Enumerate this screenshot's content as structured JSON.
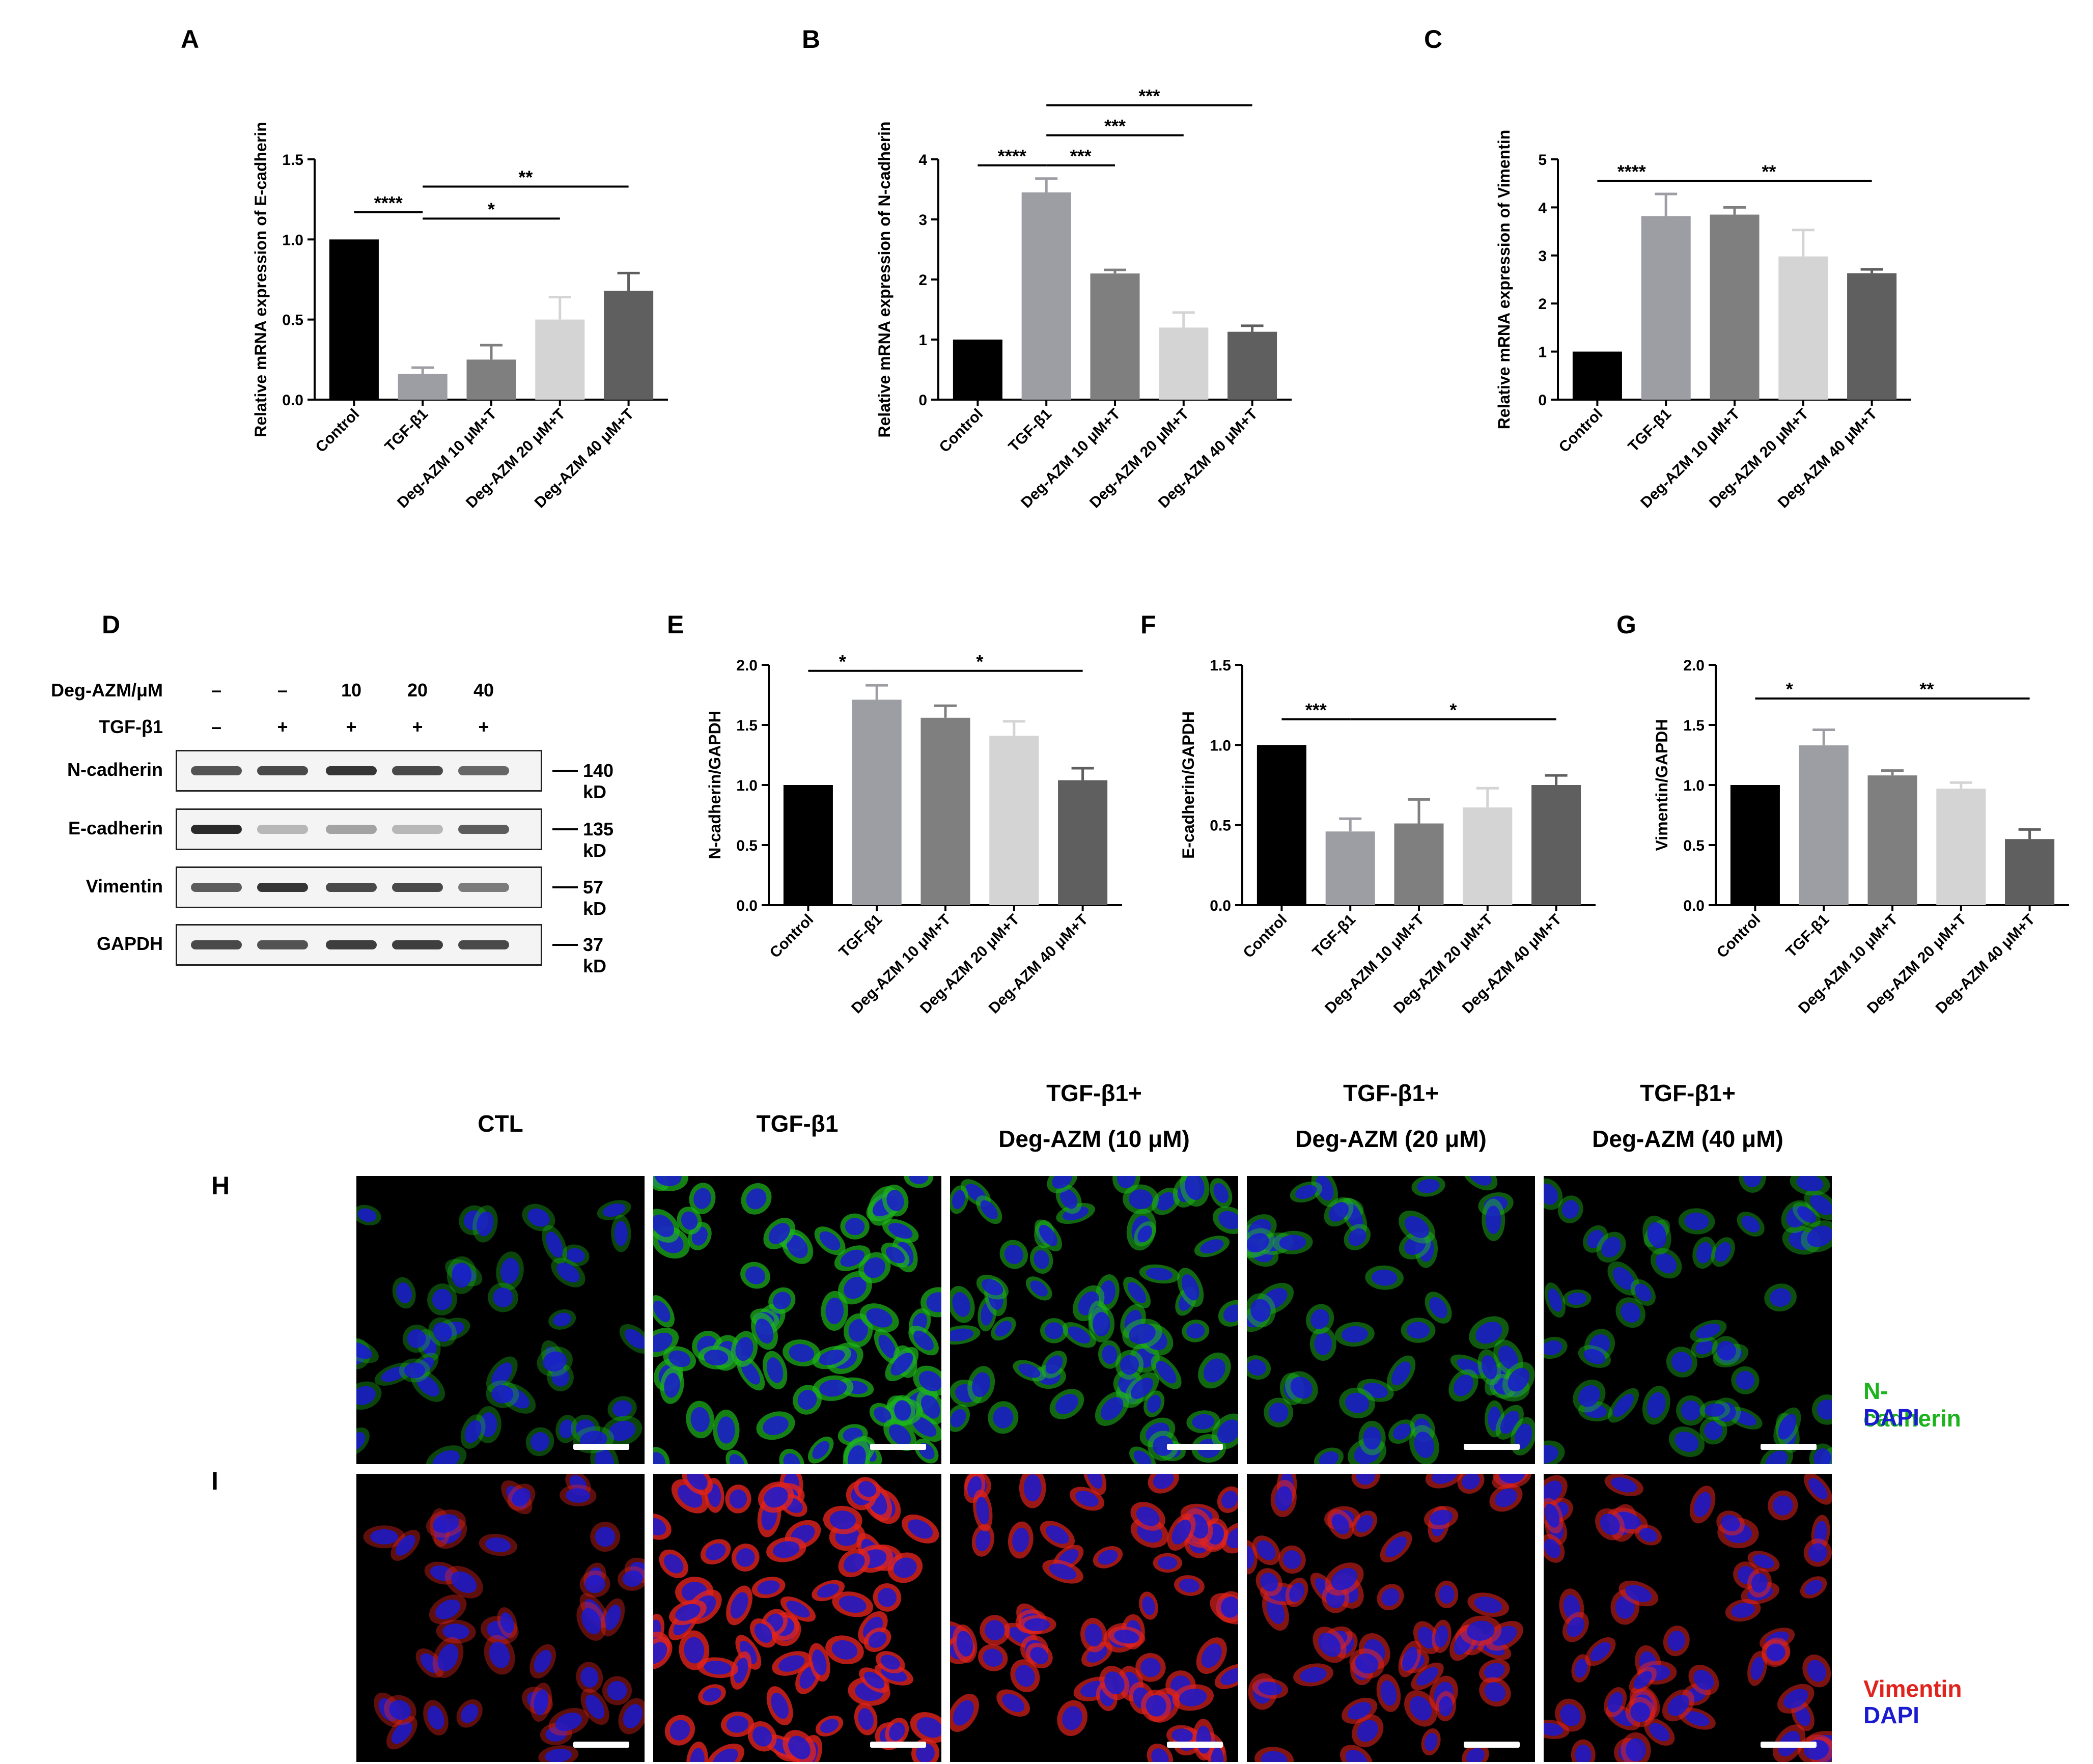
{
  "panel_letters": {
    "A": "A",
    "B": "B",
    "C": "C",
    "D": "D",
    "E": "E",
    "F": "F",
    "G": "G",
    "H": "H",
    "I": "I"
  },
  "chart_data": [
    {
      "id": "A",
      "type": "bar",
      "categories": [
        "Control",
        "TGF-β1",
        "Deg-AZM 10 μM+T",
        "Deg-AZM 20 μM+T",
        "Deg-AZM 40 μM+T"
      ],
      "values": [
        1.0,
        0.16,
        0.25,
        0.5,
        0.68
      ],
      "errors": [
        0,
        0.04,
        0.09,
        0.14,
        0.11
      ],
      "colors": [
        "#000000",
        "#9d9da4",
        "#7f7f7f",
        "#d4d4d4",
        "#5f5f5f"
      ],
      "ylabel": "Relative mRNA expression of E-cadherin",
      "ylim": [
        0,
        1.5
      ],
      "ticks": [
        "0.0",
        "0.5",
        "1.0",
        "1.5"
      ],
      "significance": [
        {
          "from": 0,
          "to": 1,
          "y": 1.17,
          "label": "****"
        },
        {
          "from": 1,
          "to": 3,
          "y": 1.13,
          "label": "*"
        },
        {
          "from": 1,
          "to": 4,
          "y": 1.33,
          "label": "**"
        }
      ]
    },
    {
      "id": "B",
      "type": "bar",
      "categories": [
        "Control",
        "TGF-β1",
        "Deg-AZM 10 μM+T",
        "Deg-AZM 20 μM+T",
        "Deg-AZM 40 μM+T"
      ],
      "values": [
        1.0,
        3.45,
        2.1,
        1.2,
        1.13
      ],
      "errors": [
        0,
        0.23,
        0.06,
        0.25,
        0.1
      ],
      "colors": [
        "#000000",
        "#9d9da4",
        "#7f7f7f",
        "#d4d4d4",
        "#5f5f5f"
      ],
      "ylabel": "Relative mRNA expression of N-cadherin",
      "ylim": [
        0,
        4
      ],
      "ticks": [
        "0",
        "1",
        "2",
        "3",
        "4"
      ],
      "significance": [
        {
          "from": 0,
          "to": 1,
          "y": 3.9,
          "label": "****"
        },
        {
          "from": 1,
          "to": 2,
          "y": 3.9,
          "label": "***"
        },
        {
          "from": 1,
          "to": 3,
          "y": 4.4,
          "label": "***"
        },
        {
          "from": 1,
          "to": 4,
          "y": 4.9,
          "label": "***"
        }
      ]
    },
    {
      "id": "C",
      "type": "bar",
      "categories": [
        "Control",
        "TGF-β1",
        "Deg-AZM 10 μM+T",
        "Deg-AZM 20 μM+T",
        "Deg-AZM 40 μM+T"
      ],
      "values": [
        1.0,
        3.82,
        3.85,
        2.98,
        2.63
      ],
      "errors": [
        0,
        0.46,
        0.15,
        0.55,
        0.08
      ],
      "colors": [
        "#000000",
        "#9d9da4",
        "#7f7f7f",
        "#d4d4d4",
        "#5f5f5f"
      ],
      "ylabel": "Relative mRNA expression of Vimentin",
      "ylim": [
        0,
        5
      ],
      "ticks": [
        "0",
        "1",
        "2",
        "3",
        "4",
        "5"
      ],
      "significance": [
        {
          "from": 0,
          "to": 1,
          "y": 4.55,
          "label": "****"
        },
        {
          "from": 1,
          "to": 4,
          "y": 4.55,
          "label": "**"
        }
      ]
    },
    {
      "id": "E",
      "type": "bar",
      "categories": [
        "Control",
        "TGF-β1",
        "Deg-AZM 10 μM+T",
        "Deg-AZM 20 μM+T",
        "Deg-AZM 40 μM+T"
      ],
      "values": [
        1.0,
        1.71,
        1.56,
        1.41,
        1.04
      ],
      "errors": [
        0,
        0.12,
        0.1,
        0.12,
        0.1
      ],
      "colors": [
        "#000000",
        "#9d9da4",
        "#7f7f7f",
        "#d4d4d4",
        "#5f5f5f"
      ],
      "ylabel": "N-cadherin/GAPDH",
      "ylim": [
        0,
        2.0
      ],
      "ticks": [
        "0.0",
        "0.5",
        "1.0",
        "1.5",
        "2.0"
      ],
      "significance": [
        {
          "from": 0,
          "to": 1,
          "y": 1.95,
          "label": "*"
        },
        {
          "from": 1,
          "to": 4,
          "y": 1.95,
          "label": "*"
        }
      ]
    },
    {
      "id": "F",
      "type": "bar",
      "categories": [
        "Control",
        "TGF-β1",
        "Deg-AZM 10 μM+T",
        "Deg-AZM 20 μM+T",
        "Deg-AZM 40 μM+T"
      ],
      "values": [
        1.0,
        0.46,
        0.51,
        0.61,
        0.75
      ],
      "errors": [
        0,
        0.08,
        0.15,
        0.12,
        0.06
      ],
      "colors": [
        "#000000",
        "#9d9da4",
        "#7f7f7f",
        "#d4d4d4",
        "#5f5f5f"
      ],
      "ylabel": "E-cadherin/GAPDH",
      "ylim": [
        0,
        1.5
      ],
      "ticks": [
        "0.0",
        "0.5",
        "1.0",
        "1.5"
      ],
      "significance": [
        {
          "from": 0,
          "to": 1,
          "y": 1.16,
          "label": "***"
        },
        {
          "from": 1,
          "to": 4,
          "y": 1.16,
          "label": "*"
        }
      ]
    },
    {
      "id": "G",
      "type": "bar",
      "categories": [
        "Control",
        "TGF-β1",
        "Deg-AZM 10 μM+T",
        "Deg-AZM 20 μM+T",
        "Deg-AZM 40 μM+T"
      ],
      "values": [
        1.0,
        1.33,
        1.08,
        0.97,
        0.55
      ],
      "errors": [
        0,
        0.13,
        0.04,
        0.05,
        0.08
      ],
      "colors": [
        "#000000",
        "#9d9da4",
        "#7f7f7f",
        "#d4d4d4",
        "#5f5f5f"
      ],
      "ylabel": "Vimentin/GAPDH",
      "ylim": [
        0,
        2.0
      ],
      "ticks": [
        "0.0",
        "0.5",
        "1.0",
        "1.5",
        "2.0"
      ],
      "significance": [
        {
          "from": 0,
          "to": 1,
          "y": 1.72,
          "label": "*"
        },
        {
          "from": 1,
          "to": 4,
          "y": 1.72,
          "label": "**"
        }
      ]
    }
  ],
  "western_blot": {
    "header_rows": [
      {
        "label": "Deg-AZM/μM",
        "values": [
          "–",
          "–",
          "10",
          "20",
          "40"
        ]
      },
      {
        "label": "TGF-β1",
        "values": [
          "–",
          "+",
          "+",
          "+",
          "+"
        ]
      }
    ],
    "bands": [
      {
        "label": "N-cadherin",
        "size": "140 kD",
        "intensity": [
          0.8,
          0.85,
          0.95,
          0.85,
          0.7
        ]
      },
      {
        "label": "E-cadherin",
        "size": "135 kD",
        "intensity": [
          1.0,
          0.3,
          0.4,
          0.3,
          0.75
        ]
      },
      {
        "label": "Vimentin",
        "size": "57 kD",
        "intensity": [
          0.75,
          0.95,
          0.85,
          0.85,
          0.6
        ]
      },
      {
        "label": "GAPDH",
        "size": "37 kD",
        "intensity": [
          0.85,
          0.8,
          0.9,
          0.9,
          0.85
        ]
      }
    ]
  },
  "immunofluorescence": {
    "columns": [
      {
        "line1": "CTL",
        "line2": ""
      },
      {
        "line1": "TGF-β1",
        "line2": ""
      },
      {
        "line1": "TGF-β1+",
        "line2": "Deg-AZM (10 μM)"
      },
      {
        "line1": "TGF-β1+",
        "line2": "Deg-AZM (20 μM)"
      },
      {
        "line1": "TGF-β1+",
        "line2": "Deg-AZM (40 μM)"
      }
    ],
    "rows": [
      {
        "marker": "N-cadherin",
        "counterstain": "DAPI",
        "marker_color": "#1db31d",
        "counterstain_color": "#1a1ad0",
        "signal_level": [
          0.25,
          0.85,
          0.6,
          0.45,
          0.35
        ],
        "cell_density": [
          0.45,
          1.0,
          0.85,
          0.6,
          0.55
        ]
      },
      {
        "marker": "Vimentin",
        "counterstain": "DAPI",
        "marker_color": "#e0231d",
        "counterstain_color": "#1a1ad0",
        "signal_level": [
          0.3,
          1.0,
          0.8,
          0.6,
          0.55
        ],
        "cell_density": [
          0.4,
          1.0,
          0.85,
          0.7,
          0.7
        ]
      }
    ]
  }
}
